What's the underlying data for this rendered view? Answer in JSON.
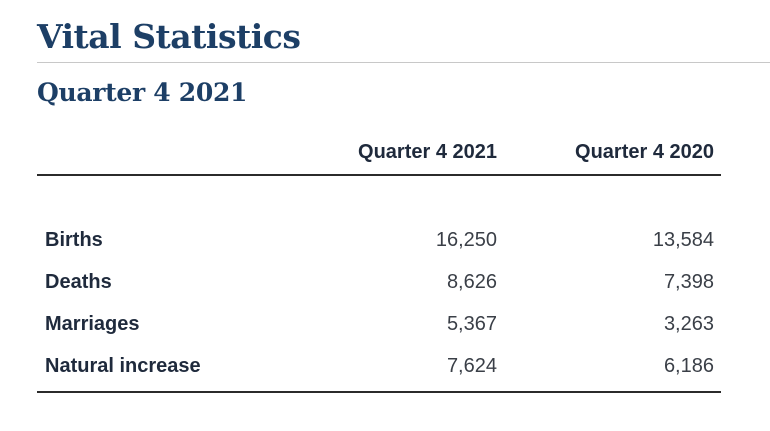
{
  "page": {
    "title": "Vital Statistics",
    "subtitle": "Quarter 4 2021"
  },
  "table": {
    "headers": [
      "",
      "Quarter 4 2021",
      "Quarter 4 2020"
    ],
    "rows": [
      {
        "label": "Births",
        "q4_2021": "16,250",
        "q4_2020": "13,584"
      },
      {
        "label": "Deaths",
        "q4_2021": "8,626",
        "q4_2020": "7,398"
      },
      {
        "label": "Marriages",
        "q4_2021": "5,367",
        "q4_2020": "3,263"
      },
      {
        "label": "Natural increase",
        "q4_2021": "7,624",
        "q4_2020": "6,186"
      }
    ]
  },
  "colors": {
    "heading": "#1d3f66",
    "text": "#1f2a3c",
    "rule": "#2b2b2b"
  }
}
